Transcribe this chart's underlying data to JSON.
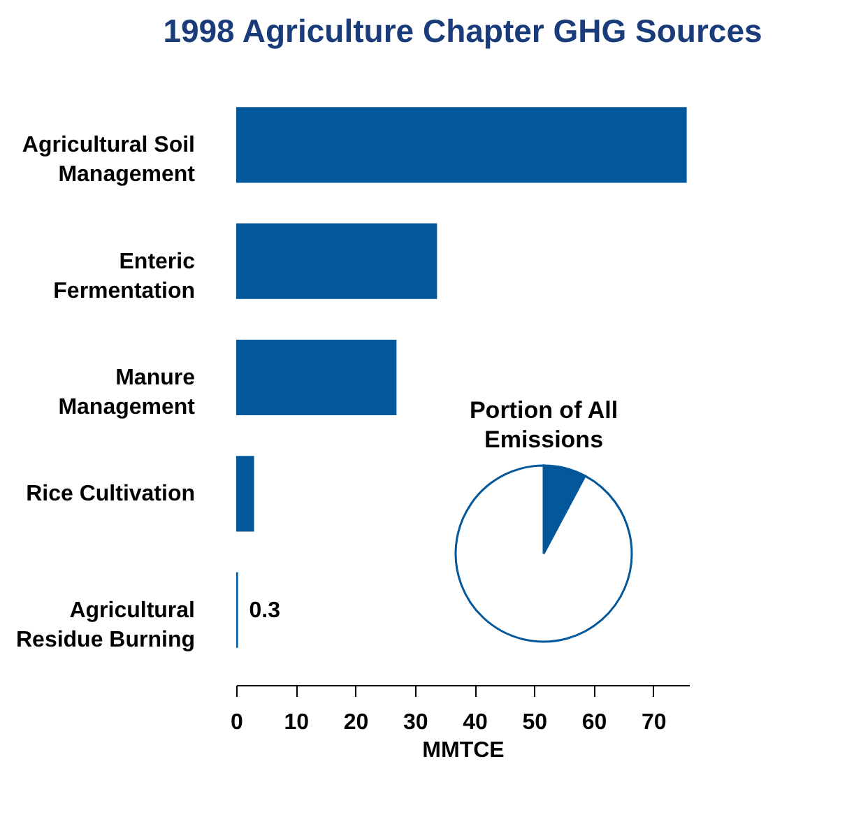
{
  "chart_data": [
    {
      "type": "bar",
      "orientation": "horizontal",
      "title": "1998 Agriculture Chapter GHG Sources",
      "xlabel": "MMTCE",
      "categories": [
        "Agricultural Soil\nManagement",
        "Enteric\nFermentation",
        "Manure\nManagement",
        "Rice Cultivation",
        "Agricultural\nResidue Burning"
      ],
      "values": [
        75.6,
        33.7,
        26.9,
        3.0,
        0.3
      ],
      "value_labels": [
        null,
        null,
        null,
        null,
        "0.3"
      ],
      "color": "#03579b",
      "xlim": [
        0,
        76
      ],
      "xticks": [
        0,
        10,
        20,
        30,
        40,
        50,
        60,
        70
      ],
      "grid": false
    },
    {
      "type": "pie",
      "title": "Portion of All\nEmissions",
      "categories": [
        null,
        null
      ],
      "values": [
        7.8,
        92.2
      ],
      "colors": [
        "#03579b",
        "#ffffff"
      ],
      "legend": false
    }
  ]
}
